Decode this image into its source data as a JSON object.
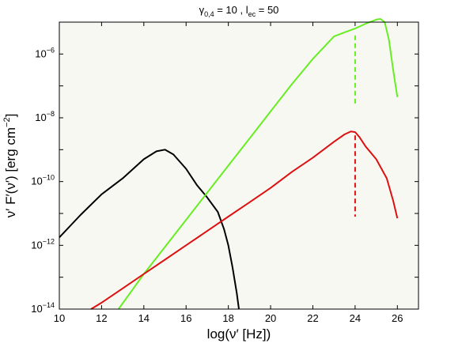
{
  "chart_data": {
    "type": "line",
    "title": {
      "symbol": "γ",
      "symbol_sub": "0,4",
      "middle": " = 10 , l",
      "l_sub": "ec",
      "end": " = 50"
    },
    "xlabel": "log(ν′ [Hz])",
    "ylabel": {
      "main": "ν′ F′(ν′) [erg cm",
      "sup": "−2",
      "end": "]"
    },
    "xlim": [
      10,
      27
    ],
    "ylim_log10": [
      -14,
      -5
    ],
    "x_ticks": [
      10,
      12,
      14,
      16,
      18,
      20,
      22,
      24,
      26
    ],
    "y_ticks": [
      {
        "exp": -14,
        "base": "10",
        "sup": "−14"
      },
      {
        "exp": -12,
        "base": "10",
        "sup": "−12"
      },
      {
        "exp": -10,
        "base": "10",
        "sup": "−10"
      },
      {
        "exp": -8,
        "base": "10",
        "sup": "−8"
      },
      {
        "exp": -6,
        "base": "10",
        "sup": "−6"
      }
    ],
    "grid": false,
    "background": "#f8f8f3",
    "series": [
      {
        "color": "#000000",
        "style": "solid",
        "x": [
          10.0,
          11.0,
          12.0,
          13.0,
          14.0,
          14.6,
          15.0,
          15.4,
          16.0,
          16.5,
          17.0,
          17.5,
          17.8,
          18.0,
          18.2,
          18.4,
          18.5
        ],
        "y": [
          -11.75,
          -11.05,
          -10.4,
          -9.9,
          -9.3,
          -9.05,
          -9.0,
          -9.15,
          -9.6,
          -10.1,
          -10.5,
          -10.95,
          -11.5,
          -12.0,
          -12.7,
          -13.5,
          -14.0
        ]
      },
      {
        "color": "#66ee22",
        "style": "solid",
        "x": [
          12.8,
          14.0,
          15.0,
          16.0,
          17.0,
          18.0,
          19.0,
          20.0,
          21.0,
          22.0,
          23.0,
          23.5,
          24.0,
          24.5,
          25.0,
          25.2,
          25.4,
          25.6,
          25.8,
          26.0
        ],
        "y": [
          -14.0,
          -12.9,
          -12.05,
          -11.2,
          -10.35,
          -9.5,
          -8.65,
          -7.8,
          -6.95,
          -6.15,
          -5.45,
          -5.32,
          -5.2,
          -5.05,
          -4.92,
          -4.9,
          -5.0,
          -5.55,
          -6.5,
          -7.35
        ]
      },
      {
        "color": "#dd1111",
        "style": "solid",
        "x": [
          11.5,
          12.0,
          13.0,
          14.0,
          15.0,
          16.0,
          17.0,
          18.0,
          19.0,
          20.0,
          21.0,
          22.0,
          23.0,
          23.5,
          23.8,
          24.0,
          24.2,
          24.5,
          25.0,
          25.5,
          25.8,
          26.0
        ],
        "y": [
          -14.0,
          -13.8,
          -13.35,
          -12.9,
          -12.45,
          -12.0,
          -11.55,
          -11.1,
          -10.65,
          -10.2,
          -9.7,
          -9.25,
          -8.75,
          -8.52,
          -8.43,
          -8.45,
          -8.6,
          -8.9,
          -9.3,
          -9.9,
          -10.6,
          -11.15
        ]
      },
      {
        "color": "#66ee22",
        "style": "dashed",
        "x": [
          24.0,
          24.0
        ],
        "y": [
          -5.42,
          -7.65
        ]
      },
      {
        "color": "#dd1111",
        "style": "dashed",
        "x": [
          24.0,
          24.0
        ],
        "y": [
          -8.55,
          -11.1
        ]
      }
    ]
  }
}
